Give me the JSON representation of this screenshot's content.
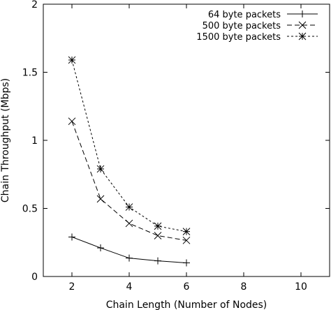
{
  "chart_data": {
    "type": "line",
    "xlabel": "Chain Length (Number of Nodes)",
    "ylabel": "Chain Throughput (Mbps)",
    "xlim": [
      1,
      11
    ],
    "ylim": [
      0,
      2
    ],
    "xticks": [
      2,
      4,
      6,
      8,
      10
    ],
    "yticks": [
      0,
      0.5,
      1,
      1.5,
      2
    ],
    "xtick_labels": [
      "2",
      "4",
      "6",
      "8",
      "10"
    ],
    "ytick_labels": [
      "0",
      "0.5",
      "1",
      "1.5",
      "2"
    ],
    "grid": false,
    "legend_position": "top-right",
    "series": [
      {
        "name": "64 byte packets",
        "marker": "plus",
        "dash": "solid",
        "x": [
          2,
          3,
          4,
          5,
          6
        ],
        "y": [
          0.29,
          0.21,
          0.135,
          0.115,
          0.1
        ]
      },
      {
        "name": "500 byte packets",
        "marker": "cross",
        "dash": "dashed",
        "x": [
          2,
          3,
          4,
          5,
          6
        ],
        "y": [
          1.14,
          0.57,
          0.39,
          0.3,
          0.265
        ]
      },
      {
        "name": "1500 byte packets",
        "marker": "star",
        "dash": "dotted",
        "x": [
          2,
          3,
          4,
          5,
          6
        ],
        "y": [
          1.59,
          0.79,
          0.51,
          0.37,
          0.33
        ]
      }
    ]
  }
}
